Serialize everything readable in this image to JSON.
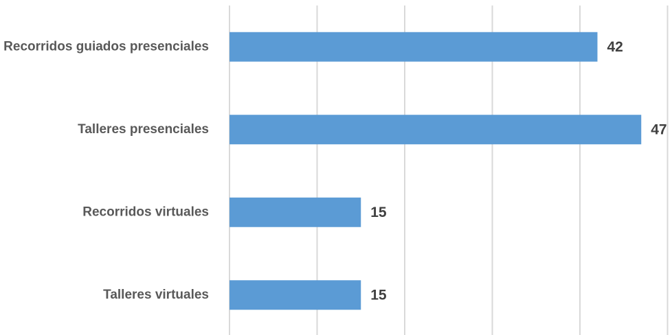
{
  "chart_data": {
    "type": "bar",
    "orientation": "horizontal",
    "categories": [
      "Recorridos guiados presenciales",
      "Talleres presenciales",
      "Recorridos virtuales",
      "Talleres virtuales"
    ],
    "values": [
      42,
      47,
      15,
      15
    ],
    "data_labels": [
      "42",
      "47",
      "15",
      "15"
    ],
    "xlim": [
      0,
      50
    ],
    "grid": true,
    "legend": "none",
    "bar_color": "#5b9bd5",
    "title": "",
    "xlabel": "",
    "ylabel": ""
  }
}
